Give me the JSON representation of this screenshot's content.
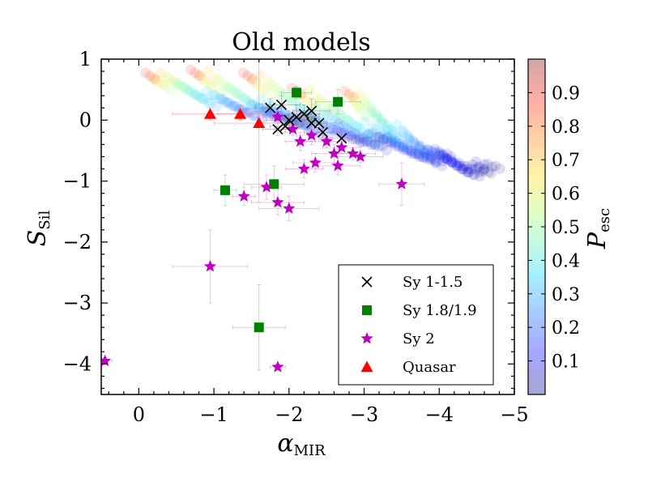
{
  "chart_data": {
    "type": "scatter",
    "title": "Old models",
    "xlabel": {
      "main": "α",
      "sub": "MIR"
    },
    "ylabel": {
      "main": "S",
      "sub": "Sil"
    },
    "xlim": [
      0.5,
      -5
    ],
    "ylim": [
      -4.5,
      1
    ],
    "x_ticks": [
      {
        "value": 0,
        "label": "0"
      },
      {
        "value": -1,
        "label": "−1"
      },
      {
        "value": -2,
        "label": "−2"
      },
      {
        "value": -3,
        "label": "−3"
      },
      {
        "value": -4,
        "label": "−4"
      },
      {
        "value": -5,
        "label": "−5"
      }
    ],
    "y_ticks": [
      {
        "value": 1,
        "label": "1"
      },
      {
        "value": 0,
        "label": "0"
      },
      {
        "value": -1,
        "label": "−1"
      },
      {
        "value": -2,
        "label": "−2"
      },
      {
        "value": -3,
        "label": "−3"
      },
      {
        "value": -4,
        "label": "−4"
      }
    ],
    "colorbar": {
      "label": {
        "main": "P",
        "sub": "esc"
      },
      "range": [
        0,
        1
      ],
      "ticks": [
        "0.1",
        "0.2",
        "0.3",
        "0.4",
        "0.5",
        "0.6",
        "0.7",
        "0.8",
        "0.9"
      ],
      "tick_values": [
        0.1,
        0.2,
        0.3,
        0.4,
        0.5,
        0.6,
        0.7,
        0.8,
        0.9
      ]
    },
    "model_tracks": [
      {
        "x_start": -0.15,
        "y_start": 0.75,
        "x_end": -2.3,
        "y_end": 0.0,
        "pesc_start": 0.9,
        "pesc_end": 0.02
      },
      {
        "x_start": -0.75,
        "y_start": 0.8,
        "x_end": -3.3,
        "y_end": -0.35,
        "pesc_start": 0.9,
        "pesc_end": 0.02
      },
      {
        "x_start": -1.45,
        "y_start": 0.75,
        "x_end": -4.1,
        "y_end": -0.6,
        "pesc_start": 0.9,
        "pesc_end": 0.02
      },
      {
        "x_start": -2.1,
        "y_start": 0.5,
        "x_end": -4.75,
        "y_end": -0.8,
        "pesc_start": 0.9,
        "pesc_end": 0.02
      },
      {
        "x_start": -2.8,
        "y_start": 0.45,
        "x_end": -4.6,
        "y_end": -0.85,
        "pesc_start": 0.85,
        "pesc_end": 0.02
      }
    ],
    "series": [
      {
        "name": "Sy 1-1.5",
        "marker": "x",
        "color": "#000000",
        "points": [
          {
            "x": -1.75,
            "y": 0.2,
            "xerr": 0.2,
            "yerr": 0.15
          },
          {
            "x": -1.9,
            "y": 0.25,
            "xerr": 0.25,
            "yerr": 0.15
          },
          {
            "x": -1.85,
            "y": -0.15,
            "xerr": 0.2,
            "yerr": 0.1
          },
          {
            "x": -1.95,
            "y": -0.1,
            "xerr": 0.2,
            "yerr": 0.1
          },
          {
            "x": -2.0,
            "y": 0.0,
            "xerr": 0.3,
            "yerr": 0.15
          },
          {
            "x": -2.1,
            "y": 0.05,
            "xerr": 0.25,
            "yerr": 0.2
          },
          {
            "x": -2.2,
            "y": 0.1,
            "xerr": 0.2,
            "yerr": 0.15
          },
          {
            "x": -2.3,
            "y": 0.15,
            "xerr": 0.25,
            "yerr": 0.2
          },
          {
            "x": -2.3,
            "y": -0.05,
            "xerr": 0.2,
            "yerr": 0.1
          },
          {
            "x": -2.4,
            "y": -0.05,
            "xerr": 0.3,
            "yerr": 0.15
          },
          {
            "x": -2.45,
            "y": -0.2,
            "xerr": 0.25,
            "yerr": 0.1
          },
          {
            "x": -2.7,
            "y": -0.3,
            "xerr": 0.3,
            "yerr": 0.15
          }
        ]
      },
      {
        "name": "Sy 1.8/1.9",
        "marker": "square",
        "color": "#008000",
        "points": [
          {
            "x": -2.1,
            "y": 0.45,
            "xerr": 0.2,
            "yerr": 0.1
          },
          {
            "x": -2.65,
            "y": 0.3,
            "xerr": 0.3,
            "yerr": 0.2
          },
          {
            "x": -1.8,
            "y": -1.05,
            "xerr": 0.4,
            "yerr": 0.3
          },
          {
            "x": -1.15,
            "y": -1.15,
            "xerr": 0.15,
            "yerr": 0.25
          },
          {
            "x": -1.6,
            "y": -3.4,
            "xerr": 0.35,
            "yerr": 0.7
          }
        ]
      },
      {
        "name": "Sy 2",
        "marker": "star",
        "color": "#bf00bf",
        "points": [
          {
            "x": -1.85,
            "y": 0.05,
            "xerr": 0.2,
            "yerr": 0.1
          },
          {
            "x": -2.05,
            "y": -0.15,
            "xerr": 0.25,
            "yerr": 0.1
          },
          {
            "x": -2.15,
            "y": -0.35,
            "xerr": 0.2,
            "yerr": 0.15
          },
          {
            "x": -2.3,
            "y": -0.25,
            "xerr": 0.2,
            "yerr": 0.15
          },
          {
            "x": -2.5,
            "y": -0.35,
            "xerr": 0.3,
            "yerr": 0.1
          },
          {
            "x": -2.6,
            "y": -0.55,
            "xerr": 0.3,
            "yerr": 0.15
          },
          {
            "x": -2.7,
            "y": -0.45,
            "xerr": 0.25,
            "yerr": 0.1
          },
          {
            "x": -2.85,
            "y": -0.55,
            "xerr": 0.3,
            "yerr": 0.1
          },
          {
            "x": -2.95,
            "y": -0.6,
            "xerr": 0.3,
            "yerr": 0.1
          },
          {
            "x": -2.65,
            "y": -0.75,
            "xerr": 0.3,
            "yerr": 0.15
          },
          {
            "x": -2.35,
            "y": -0.7,
            "xerr": 0.3,
            "yerr": 0.15
          },
          {
            "x": -2.2,
            "y": -0.8,
            "xerr": 0.25,
            "yerr": 0.15
          },
          {
            "x": -1.7,
            "y": -1.1,
            "xerr": 0.2,
            "yerr": 0.2
          },
          {
            "x": -1.4,
            "y": -1.25,
            "xerr": 0.15,
            "yerr": 0.15
          },
          {
            "x": -1.85,
            "y": -1.35,
            "xerr": 0.35,
            "yerr": 0.2
          },
          {
            "x": -2.0,
            "y": -1.45,
            "xerr": 0.4,
            "yerr": 0.2
          },
          {
            "x": -3.5,
            "y": -1.05,
            "xerr": 0.3,
            "yerr": 0.35
          },
          {
            "x": -0.95,
            "y": -2.4,
            "xerr": 0.5,
            "yerr": 0.6
          },
          {
            "x": -1.85,
            "y": -4.05,
            "xerr": 0.1,
            "yerr": 0.05
          },
          {
            "x": 0.45,
            "y": -3.95,
            "xerr": 0.1,
            "yerr": 0.05
          }
        ]
      },
      {
        "name": "Quasar",
        "marker": "triangle",
        "color": "#ff0000",
        "points": [
          {
            "x": -0.95,
            "y": 0.1,
            "xerr": 0.5,
            "yerr": 0.1
          },
          {
            "x": -1.35,
            "y": 0.1,
            "xerr": 0.3,
            "yerr": 0.1
          },
          {
            "x": -1.6,
            "y": -0.05,
            "xerr": 0.6,
            "yerr": 1.3
          }
        ]
      }
    ],
    "legend": {
      "location": "lower right",
      "entries": [
        "Sy 1-1.5",
        "Sy 1.8/1.9",
        "Sy 2",
        "Quasar"
      ]
    }
  }
}
